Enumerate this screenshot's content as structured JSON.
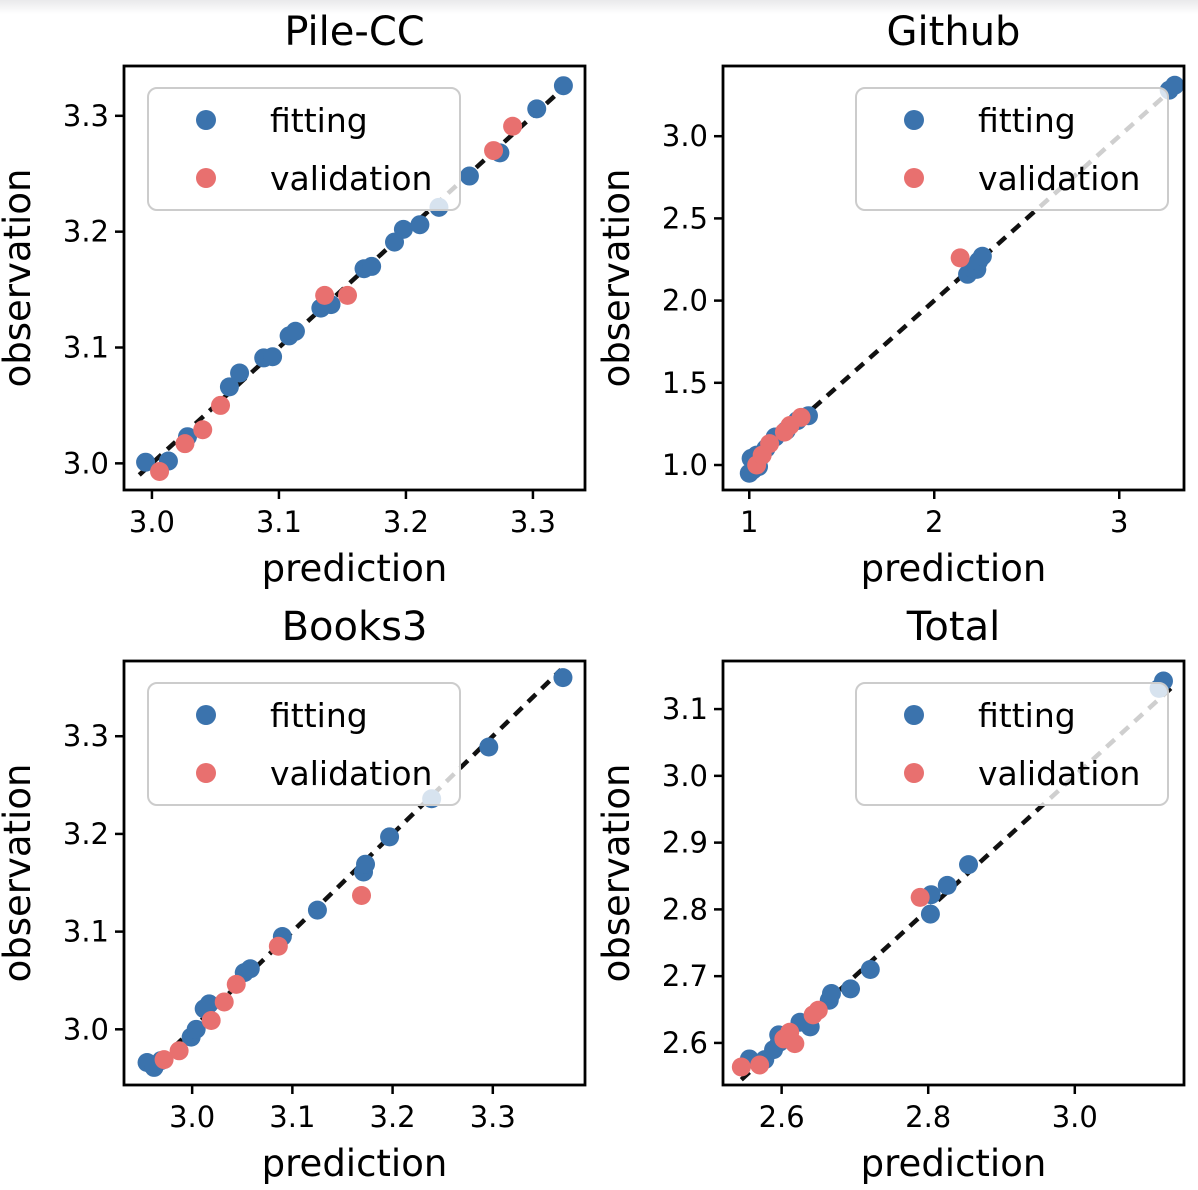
{
  "page": {
    "background": "#ffffff"
  },
  "style": {
    "fitting_color": "#3b73ad",
    "validation_color": "#e8706f",
    "identity_line_color": "#111111",
    "axis_color": "#000000",
    "legend_border_color": "#cccccc",
    "legend_fill": "#ffffff",
    "legend_fill_alpha": 0.8
  },
  "legend": {
    "fitting_label": "fitting",
    "validation_label": "validation"
  },
  "chart_data": [
    {
      "id": "pile-cc",
      "type": "scatter",
      "title": "Pile-CC",
      "xlabel": "prediction",
      "ylabel": "observation",
      "xlim": [
        2.978,
        3.341
      ],
      "ylim": [
        2.977,
        3.343
      ],
      "xticks": {
        "values": [
          3.0,
          3.1,
          3.2,
          3.3
        ],
        "labels": [
          "3.0",
          "3.1",
          "3.2",
          "3.3"
        ]
      },
      "yticks": {
        "values": [
          3.0,
          3.1,
          3.2,
          3.3
        ],
        "labels": [
          "3.0",
          "3.1",
          "3.2",
          "3.3"
        ]
      },
      "grid": false,
      "legend_position": "upper-left",
      "identity_line": {
        "style": "dashed",
        "from": 2.99,
        "to": 3.327
      },
      "series": [
        {
          "name": "fitting",
          "points": [
            [
              2.995,
              3.001
            ],
            [
              3.013,
              3.002
            ],
            [
              3.028,
              3.023
            ],
            [
              3.061,
              3.066
            ],
            [
              3.069,
              3.078
            ],
            [
              3.088,
              3.091
            ],
            [
              3.095,
              3.092
            ],
            [
              3.108,
              3.11
            ],
            [
              3.113,
              3.114
            ],
            [
              3.133,
              3.134
            ],
            [
              3.141,
              3.137
            ],
            [
              3.167,
              3.168
            ],
            [
              3.173,
              3.17
            ],
            [
              3.191,
              3.191
            ],
            [
              3.198,
              3.202
            ],
            [
              3.211,
              3.206
            ],
            [
              3.226,
              3.221
            ],
            [
              3.25,
              3.248
            ],
            [
              3.274,
              3.268
            ],
            [
              3.303,
              3.306
            ],
            [
              3.324,
              3.326
            ]
          ]
        },
        {
          "name": "validation",
          "points": [
            [
              3.006,
              2.993
            ],
            [
              3.026,
              3.017
            ],
            [
              3.04,
              3.029
            ],
            [
              3.054,
              3.05
            ],
            [
              3.136,
              3.145
            ],
            [
              3.154,
              3.145
            ],
            [
              3.269,
              3.27
            ],
            [
              3.284,
              3.291
            ]
          ]
        }
      ]
    },
    {
      "id": "github",
      "type": "scatter",
      "title": "Github",
      "xlabel": "prediction",
      "ylabel": "observation",
      "xlim": [
        0.858,
        3.35
      ],
      "ylim": [
        0.848,
        3.427
      ],
      "xticks": {
        "values": [
          1,
          2,
          3
        ],
        "labels": [
          "1",
          "2",
          "3"
        ]
      },
      "yticks": {
        "values": [
          1.0,
          1.5,
          2.0,
          2.5,
          3.0
        ],
        "labels": [
          "1.0",
          "1.5",
          "2.0",
          "2.5",
          "3.0"
        ]
      },
      "grid": false,
      "legend_position": "upper-right",
      "identity_line": {
        "style": "dashed",
        "from": 0.96,
        "to": 3.305
      },
      "series": [
        {
          "name": "fitting",
          "points": [
            [
              1.0,
              0.95
            ],
            [
              1.01,
              1.04
            ],
            [
              1.02,
              0.97
            ],
            [
              1.03,
              1.01
            ],
            [
              1.04,
              1.06
            ],
            [
              1.05,
              0.99
            ],
            [
              1.06,
              1.05
            ],
            [
              1.09,
              1.1
            ],
            [
              1.14,
              1.17
            ],
            [
              1.2,
              1.21
            ],
            [
              1.26,
              1.27
            ],
            [
              1.32,
              1.3
            ],
            [
              2.18,
              2.16
            ],
            [
              2.2,
              2.2
            ],
            [
              2.23,
              2.19
            ],
            [
              2.24,
              2.24
            ],
            [
              2.26,
              2.27
            ],
            [
              3.27,
              3.28
            ],
            [
              3.3,
              3.31
            ]
          ]
        },
        {
          "name": "validation",
          "points": [
            [
              1.04,
              1.0
            ],
            [
              1.07,
              1.06
            ],
            [
              1.11,
              1.13
            ],
            [
              1.19,
              1.2
            ],
            [
              1.22,
              1.24
            ],
            [
              1.28,
              1.29
            ],
            [
              2.14,
              2.26
            ]
          ]
        }
      ]
    },
    {
      "id": "books3",
      "type": "scatter",
      "title": "Books3",
      "xlabel": "prediction",
      "ylabel": "observation",
      "xlim": [
        2.932,
        3.392
      ],
      "ylim": [
        2.943,
        3.377
      ],
      "xticks": {
        "values": [
          3.0,
          3.1,
          3.2,
          3.3
        ],
        "labels": [
          "3.0",
          "3.1",
          "3.2",
          "3.3"
        ]
      },
      "yticks": {
        "values": [
          3.0,
          3.1,
          3.2,
          3.3
        ],
        "labels": [
          "3.0",
          "3.1",
          "3.2",
          "3.3"
        ]
      },
      "grid": false,
      "legend_position": "upper-left",
      "identity_line": {
        "style": "dashed",
        "from": 2.955,
        "to": 3.368
      },
      "series": [
        {
          "name": "fitting",
          "points": [
            [
              2.955,
              2.966
            ],
            [
              2.962,
              2.961
            ],
            [
              2.969,
              2.968
            ],
            [
              2.999,
              2.992
            ],
            [
              3.004,
              3.0
            ],
            [
              3.012,
              3.021
            ],
            [
              3.017,
              3.026
            ],
            [
              3.052,
              3.058
            ],
            [
              3.058,
              3.062
            ],
            [
              3.09,
              3.095
            ],
            [
              3.125,
              3.122
            ],
            [
              3.171,
              3.161
            ],
            [
              3.173,
              3.169
            ],
            [
              3.197,
              3.197
            ],
            [
              3.239,
              3.236
            ],
            [
              3.296,
              3.289
            ],
            [
              3.37,
              3.36
            ]
          ]
        },
        {
          "name": "validation",
          "points": [
            [
              2.972,
              2.969
            ],
            [
              2.987,
              2.978
            ],
            [
              3.019,
              3.009
            ],
            [
              3.032,
              3.028
            ],
            [
              3.044,
              3.046
            ],
            [
              3.086,
              3.085
            ],
            [
              3.169,
              3.137
            ]
          ]
        }
      ]
    },
    {
      "id": "total",
      "type": "scatter",
      "title": "Total",
      "xlabel": "prediction",
      "ylabel": "observation",
      "xlim": [
        2.52,
        3.149
      ],
      "ylim": [
        2.537,
        3.172
      ],
      "xticks": {
        "values": [
          2.6,
          2.8,
          3.0
        ],
        "labels": [
          "2.6",
          "2.8",
          "3.0"
        ]
      },
      "yticks": {
        "values": [
          2.6,
          2.7,
          2.8,
          2.9,
          3.0,
          3.1
        ],
        "labels": [
          "2.6",
          "2.7",
          "2.8",
          "2.9",
          "3.0",
          "3.1"
        ]
      },
      "grid": false,
      "legend_position": "upper-right",
      "identity_line": {
        "style": "dashed",
        "from": 2.545,
        "to": 3.135
      },
      "series": [
        {
          "name": "fitting",
          "points": [
            [
              2.556,
              2.576
            ],
            [
              2.577,
              2.575
            ],
            [
              2.589,
              2.59
            ],
            [
              2.596,
              2.612
            ],
            [
              2.597,
              2.601
            ],
            [
              2.625,
              2.631
            ],
            [
              2.639,
              2.624
            ],
            [
              2.665,
              2.664
            ],
            [
              2.668,
              2.674
            ],
            [
              2.694,
              2.681
            ],
            [
              2.721,
              2.71
            ],
            [
              2.803,
              2.793
            ],
            [
              2.804,
              2.822
            ],
            [
              2.826,
              2.836
            ],
            [
              2.855,
              2.867
            ],
            [
              3.115,
              3.131
            ],
            [
              3.121,
              3.142
            ]
          ]
        },
        {
          "name": "validation",
          "points": [
            [
              2.545,
              2.564
            ],
            [
              2.57,
              2.567
            ],
            [
              2.603,
              2.606
            ],
            [
              2.611,
              2.616
            ],
            [
              2.618,
              2.599
            ],
            [
              2.643,
              2.642
            ],
            [
              2.65,
              2.649
            ],
            [
              2.789,
              2.818
            ]
          ]
        }
      ]
    }
  ]
}
